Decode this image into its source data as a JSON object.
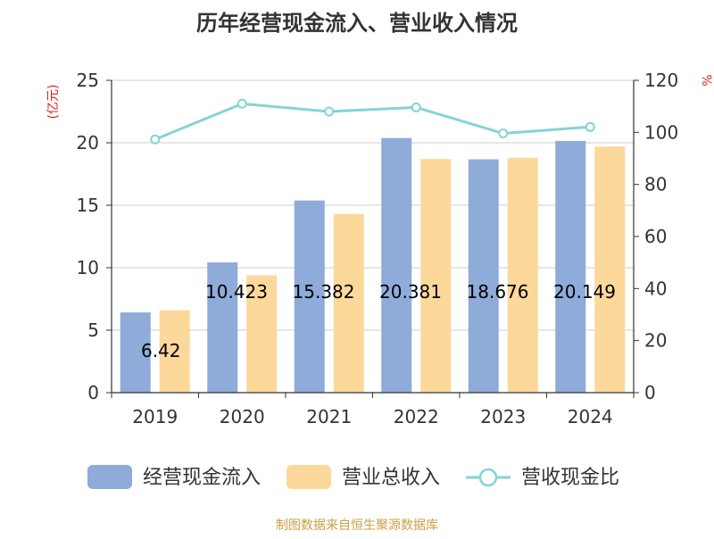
{
  "chart_data": {
    "type": "bar",
    "title": "历年经营现金流入、营业收入情况",
    "y_left_label": "(亿元)",
    "y_right_label": "%",
    "categories": [
      "2019",
      "2020",
      "2021",
      "2022",
      "2023",
      "2024"
    ],
    "y_left_ticks": [
      "0",
      "5",
      "10",
      "15",
      "20",
      "25"
    ],
    "y_right_ticks": [
      "0",
      "20",
      "40",
      "60",
      "80",
      "100",
      "120"
    ],
    "ylim_left": [
      0,
      25
    ],
    "ylim_right": [
      0,
      120
    ],
    "series": [
      {
        "name": "经营现金流入",
        "type": "bar",
        "axis": "left",
        "color": "#8eabd9",
        "values": [
          6.42,
          10.423,
          15.382,
          20.381,
          18.676,
          20.149
        ],
        "labels": [
          "6.42",
          "10.423",
          "15.382",
          "20.381",
          "18.676",
          "20.149"
        ]
      },
      {
        "name": "营业总收入",
        "type": "bar",
        "axis": "left",
        "color": "#fdd89b",
        "values": [
          6.6,
          9.4,
          14.3,
          18.7,
          18.8,
          19.7
        ]
      },
      {
        "name": "营收现金比",
        "type": "line",
        "axis": "right",
        "color": "#86d3d4",
        "values": [
          97.3,
          111,
          108,
          109.6,
          99.6,
          102.1
        ]
      }
    ],
    "legend_position": "bottom",
    "grid": true
  },
  "footer": "制图数据来自恒生聚源数据库"
}
